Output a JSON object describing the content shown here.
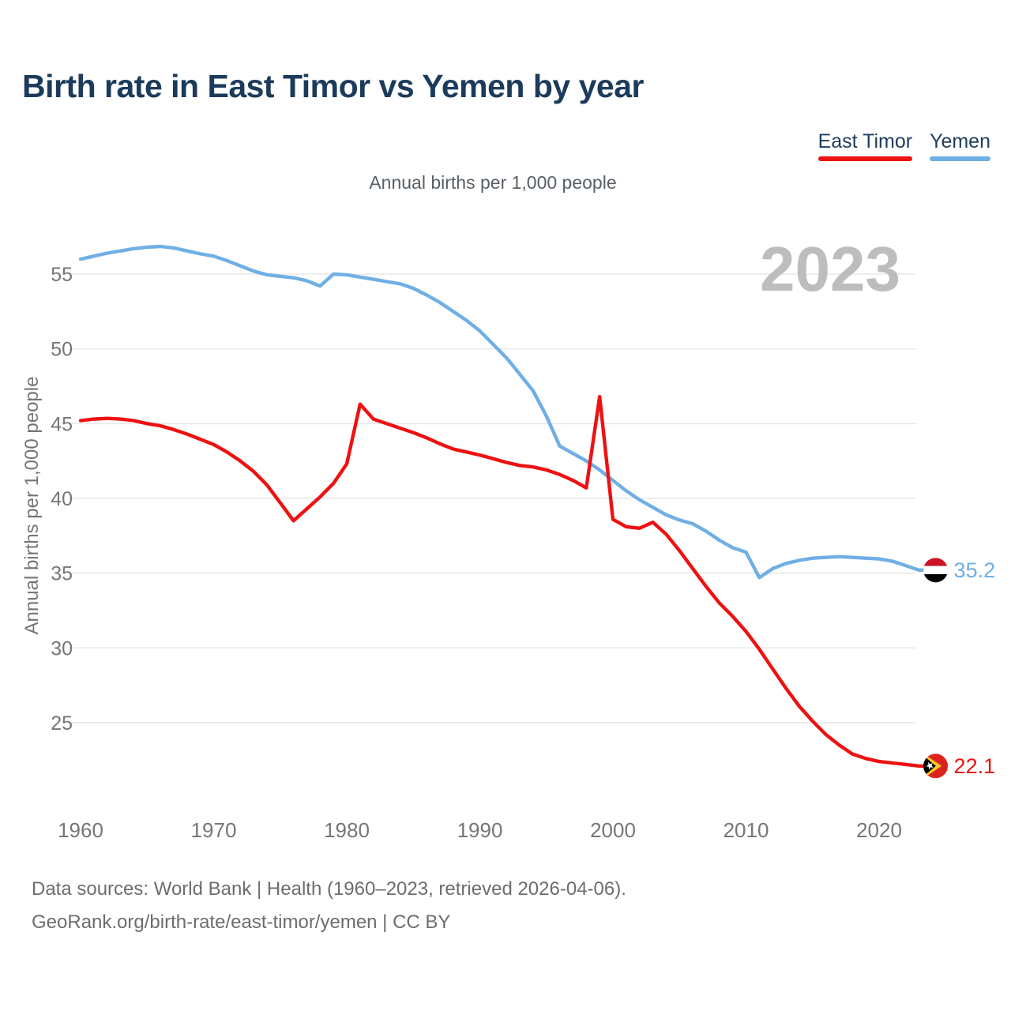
{
  "title": "Birth rate in East Timor vs Yemen by year",
  "subtitle": "Annual births per 1,000 people",
  "watermark": "2023",
  "legend": {
    "items": [
      {
        "label": "East Timor",
        "color": "#ee1111"
      },
      {
        "label": "Yemen",
        "color": "#6fafe5"
      }
    ]
  },
  "footer": {
    "line1": "Data sources: World Bank | Health (1960–2023, retrieved 2026-04-06).",
    "line2": "GeoRank.org/birth-rate/east-timor/yemen | CC BY"
  },
  "chart_data": {
    "type": "line",
    "title": "Annual births per 1,000 people",
    "xlabel": "",
    "ylabel": "Annual births per 1,000 people",
    "x": [
      1960,
      1961,
      1962,
      1963,
      1964,
      1965,
      1966,
      1967,
      1968,
      1969,
      1970,
      1971,
      1972,
      1973,
      1974,
      1975,
      1976,
      1977,
      1978,
      1979,
      1980,
      1981,
      1982,
      1983,
      1984,
      1985,
      1986,
      1987,
      1988,
      1989,
      1990,
      1991,
      1992,
      1993,
      1994,
      1995,
      1996,
      1997,
      1998,
      1999,
      2000,
      2001,
      2002,
      2003,
      2004,
      2005,
      2006,
      2007,
      2008,
      2009,
      2010,
      2011,
      2012,
      2013,
      2014,
      2015,
      2016,
      2017,
      2018,
      2019,
      2020,
      2021,
      2022,
      2023
    ],
    "xticks": [
      1960,
      1970,
      1980,
      1990,
      2000,
      2010,
      2020
    ],
    "yticks": [
      25,
      30,
      35,
      40,
      45,
      50,
      55
    ],
    "ylim": [
      21.5,
      58
    ],
    "grid": true,
    "legend_position": "top-right",
    "series": [
      {
        "name": "Yemen",
        "color": "#6fafe5",
        "flag": "yemen",
        "end_label": "35.2",
        "values": [
          56.0,
          56.2,
          56.4,
          56.55,
          56.7,
          56.8,
          56.85,
          56.75,
          56.55,
          56.35,
          56.2,
          55.9,
          55.55,
          55.2,
          54.95,
          54.85,
          54.75,
          54.55,
          54.2,
          55.0,
          54.95,
          54.8,
          54.65,
          54.5,
          54.35,
          54.05,
          53.6,
          53.1,
          52.5,
          51.9,
          51.2,
          50.3,
          49.4,
          48.3,
          47.2,
          45.5,
          43.5,
          43.0,
          42.5,
          41.9,
          41.2,
          40.5,
          39.9,
          39.4,
          38.9,
          38.55,
          38.3,
          37.8,
          37.2,
          36.7,
          36.4,
          34.7,
          35.3,
          35.65,
          35.85,
          36.0,
          36.05,
          36.1,
          36.05,
          36.0,
          35.95,
          35.8,
          35.5,
          35.2
        ]
      },
      {
        "name": "East Timor",
        "color": "#ee1111",
        "flag": "east-timor",
        "end_label": "22.1",
        "values": [
          45.2,
          45.3,
          45.35,
          45.3,
          45.2,
          45.0,
          44.85,
          44.6,
          44.3,
          43.95,
          43.6,
          43.1,
          42.5,
          41.8,
          40.9,
          39.7,
          38.5,
          39.3,
          40.1,
          41.0,
          42.3,
          46.3,
          45.3,
          45.0,
          44.7,
          44.4,
          44.05,
          43.65,
          43.3,
          43.1,
          42.9,
          42.65,
          42.4,
          42.2,
          42.1,
          41.9,
          41.6,
          41.2,
          40.7,
          46.8,
          38.6,
          38.1,
          38.0,
          38.4,
          37.6,
          36.5,
          35.3,
          34.1,
          33.0,
          32.1,
          31.1,
          29.9,
          28.6,
          27.3,
          26.1,
          25.1,
          24.2,
          23.5,
          22.9,
          22.6,
          22.4,
          22.3,
          22.2,
          22.1
        ]
      }
    ]
  }
}
